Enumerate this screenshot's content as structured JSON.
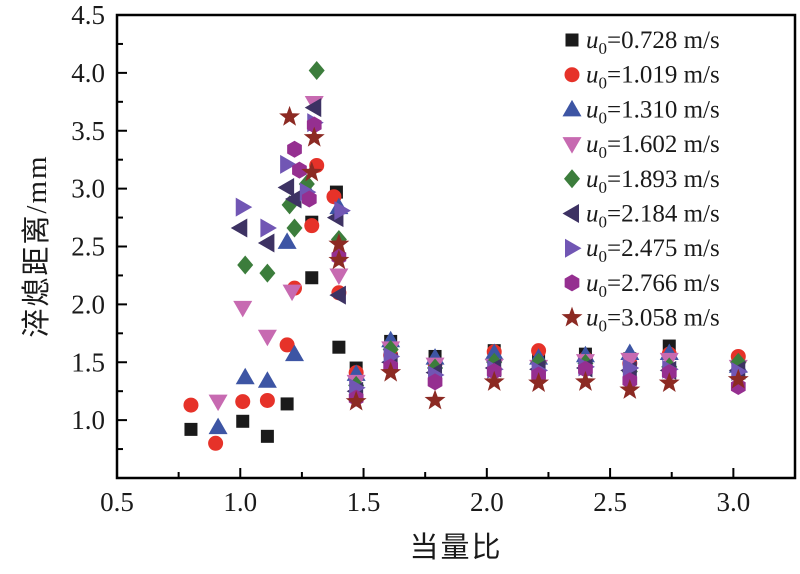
{
  "figure": {
    "background": "#ffffff",
    "frame_color": "#000000",
    "text_color": "#1a1a1a"
  },
  "chart_data": {
    "type": "scatter",
    "title": "",
    "xlabel": "当量比",
    "ylabel": "淬熄距离/mm",
    "xlim": [
      0.5,
      3.25
    ],
    "ylim": [
      0.5,
      4.5
    ],
    "grid": false,
    "legend_position": "top-right-inside",
    "legend_var": "u",
    "legend_sub": "0",
    "legend_unit": "m/s",
    "x_major_ticks": [
      0.5,
      1.0,
      1.5,
      2.0,
      2.5,
      3.0
    ],
    "x_tick_labels": [
      "0.5",
      "1.0",
      "1.5",
      "2.0",
      "2.5",
      "3.0"
    ],
    "x_minor_ticks": [
      0.75,
      1.25,
      1.75,
      2.25,
      2.75,
      3.25
    ],
    "y_major_ticks": [
      1.0,
      1.5,
      2.0,
      2.5,
      3.0,
      3.5,
      4.0,
      4.5
    ],
    "y_tick_labels": [
      "1.0",
      "1.5",
      "2.0",
      "2.5",
      "3.0",
      "3.5",
      "4.0",
      "4.5"
    ],
    "y_minor_ticks": [
      0.75,
      1.25,
      1.75,
      2.25,
      2.75,
      3.25,
      3.75,
      4.25
    ],
    "series": [
      {
        "name": "u0=0.728 m/s",
        "value": "0.728",
        "marker": "square",
        "color": "#1a1a1a",
        "points": [
          [
            0.8,
            0.92
          ],
          [
            1.01,
            0.99
          ],
          [
            1.11,
            0.86
          ],
          [
            1.19,
            1.14
          ],
          [
            1.29,
            2.23
          ],
          [
            1.29,
            2.71
          ],
          [
            1.39,
            2.97
          ],
          [
            1.4,
            1.63
          ],
          [
            1.47,
            1.45
          ],
          [
            1.61,
            1.68
          ],
          [
            1.79,
            1.55
          ],
          [
            2.03,
            1.6
          ],
          [
            2.21,
            1.56
          ],
          [
            2.4,
            1.57
          ],
          [
            2.58,
            1.53
          ],
          [
            2.74,
            1.64
          ],
          [
            3.02,
            1.51
          ]
        ]
      },
      {
        "name": "u0=1.019 m/s",
        "value": "1.019",
        "marker": "circle",
        "color": "#e63229",
        "points": [
          [
            0.8,
            1.13
          ],
          [
            0.9,
            0.8
          ],
          [
            1.01,
            1.16
          ],
          [
            1.11,
            1.17
          ],
          [
            1.19,
            1.65
          ],
          [
            1.22,
            2.14
          ],
          [
            1.29,
            2.68
          ],
          [
            1.31,
            3.2
          ],
          [
            1.38,
            2.93
          ],
          [
            1.4,
            2.1
          ],
          [
            1.47,
            1.41
          ],
          [
            1.61,
            1.56
          ],
          [
            1.79,
            1.49
          ],
          [
            2.03,
            1.59
          ],
          [
            2.21,
            1.6
          ],
          [
            2.4,
            1.53
          ],
          [
            2.58,
            1.49
          ],
          [
            2.74,
            1.57
          ],
          [
            3.02,
            1.55
          ]
        ]
      },
      {
        "name": "u0=1.310 m/s",
        "value": "1.310",
        "marker": "triangle-up",
        "color": "#3d55a4",
        "points": [
          [
            0.91,
            0.94
          ],
          [
            1.02,
            1.37
          ],
          [
            1.11,
            1.34
          ],
          [
            1.19,
            2.54
          ],
          [
            1.22,
            1.57
          ],
          [
            1.27,
            2.99
          ],
          [
            1.4,
            2.84
          ],
          [
            1.47,
            1.4
          ],
          [
            1.61,
            1.69
          ],
          [
            1.79,
            1.54
          ],
          [
            2.03,
            1.58
          ],
          [
            2.21,
            1.54
          ],
          [
            2.4,
            1.56
          ],
          [
            2.58,
            1.58
          ],
          [
            2.74,
            1.58
          ],
          [
            3.02,
            1.47
          ]
        ]
      },
      {
        "name": "u0=1.602 m/s",
        "value": "1.602",
        "marker": "triangle-down",
        "color": "#c76ab1",
        "points": [
          [
            0.91,
            1.16
          ],
          [
            1.01,
            1.97
          ],
          [
            1.11,
            1.72
          ],
          [
            1.21,
            2.11
          ],
          [
            1.3,
            3.74
          ],
          [
            1.4,
            2.25
          ],
          [
            1.47,
            1.33
          ],
          [
            1.61,
            1.62
          ],
          [
            1.79,
            1.48
          ],
          [
            2.03,
            1.47
          ],
          [
            2.21,
            1.46
          ],
          [
            2.4,
            1.51
          ],
          [
            2.58,
            1.52
          ],
          [
            2.74,
            1.52
          ],
          [
            3.02,
            1.46
          ]
        ]
      },
      {
        "name": "u0=1.893 m/s",
        "value": "1.893",
        "marker": "diamond",
        "color": "#3c7d3c",
        "points": [
          [
            1.02,
            2.34
          ],
          [
            1.11,
            2.27
          ],
          [
            1.2,
            2.86
          ],
          [
            1.22,
            2.66
          ],
          [
            1.27,
            3.04
          ],
          [
            1.31,
            4.02
          ],
          [
            1.4,
            2.56
          ],
          [
            1.47,
            1.3
          ],
          [
            1.61,
            1.61
          ],
          [
            1.79,
            1.45
          ],
          [
            2.03,
            1.5
          ],
          [
            2.21,
            1.5
          ],
          [
            2.4,
            1.49
          ],
          [
            2.58,
            1.42
          ],
          [
            2.74,
            1.46
          ],
          [
            3.02,
            1.5
          ]
        ]
      },
      {
        "name": "u0=2.184 m/s",
        "value": "2.184",
        "marker": "triangle-left",
        "color": "#3d3263",
        "points": [
          [
            1.0,
            2.66
          ],
          [
            1.11,
            2.53
          ],
          [
            1.19,
            3.01
          ],
          [
            1.22,
            2.91
          ],
          [
            1.3,
            3.7
          ],
          [
            1.39,
            2.75
          ],
          [
            1.4,
            2.08
          ],
          [
            1.47,
            1.25
          ],
          [
            1.61,
            1.5
          ],
          [
            1.79,
            1.41
          ],
          [
            2.03,
            1.45
          ],
          [
            2.21,
            1.44
          ],
          [
            2.4,
            1.45
          ],
          [
            2.58,
            1.43
          ],
          [
            2.74,
            1.43
          ],
          [
            3.02,
            1.43
          ]
        ]
      },
      {
        "name": "u0=2.475 m/s",
        "value": "2.475",
        "marker": "triangle-right",
        "color": "#7156b4",
        "points": [
          [
            1.01,
            2.84
          ],
          [
            1.11,
            2.66
          ],
          [
            1.19,
            3.21
          ],
          [
            1.27,
            2.97
          ],
          [
            1.3,
            3.57
          ],
          [
            1.41,
            2.81
          ],
          [
            1.47,
            1.28
          ],
          [
            1.61,
            1.55
          ],
          [
            1.79,
            1.39
          ],
          [
            2.03,
            1.44
          ],
          [
            2.21,
            1.43
          ],
          [
            2.4,
            1.46
          ],
          [
            2.58,
            1.45
          ],
          [
            2.74,
            1.44
          ],
          [
            3.02,
            1.42
          ]
        ]
      },
      {
        "name": "u0=2.766 m/s",
        "value": "2.766",
        "marker": "hexagon",
        "color": "#952f90",
        "points": [
          [
            1.22,
            3.34
          ],
          [
            1.24,
            3.16
          ],
          [
            1.28,
            2.91
          ],
          [
            1.3,
            3.55
          ],
          [
            1.4,
            2.41
          ],
          [
            1.47,
            1.19
          ],
          [
            1.61,
            1.46
          ],
          [
            1.79,
            1.33
          ],
          [
            2.03,
            1.42
          ],
          [
            2.21,
            1.39
          ],
          [
            2.4,
            1.44
          ],
          [
            2.58,
            1.34
          ],
          [
            2.74,
            1.41
          ],
          [
            3.02,
            1.29
          ]
        ]
      },
      {
        "name": "u0=3.058 m/s",
        "value": "3.058",
        "marker": "star",
        "color": "#8c2a23",
        "points": [
          [
            1.2,
            3.62
          ],
          [
            1.29,
            3.14
          ],
          [
            1.3,
            3.44
          ],
          [
            1.4,
            2.38
          ],
          [
            1.4,
            2.52
          ],
          [
            1.47,
            1.16
          ],
          [
            1.61,
            1.41
          ],
          [
            1.79,
            1.17
          ],
          [
            2.03,
            1.33
          ],
          [
            2.21,
            1.32
          ],
          [
            2.4,
            1.33
          ],
          [
            2.58,
            1.26
          ],
          [
            2.74,
            1.32
          ],
          [
            3.02,
            1.35
          ]
        ]
      }
    ]
  }
}
